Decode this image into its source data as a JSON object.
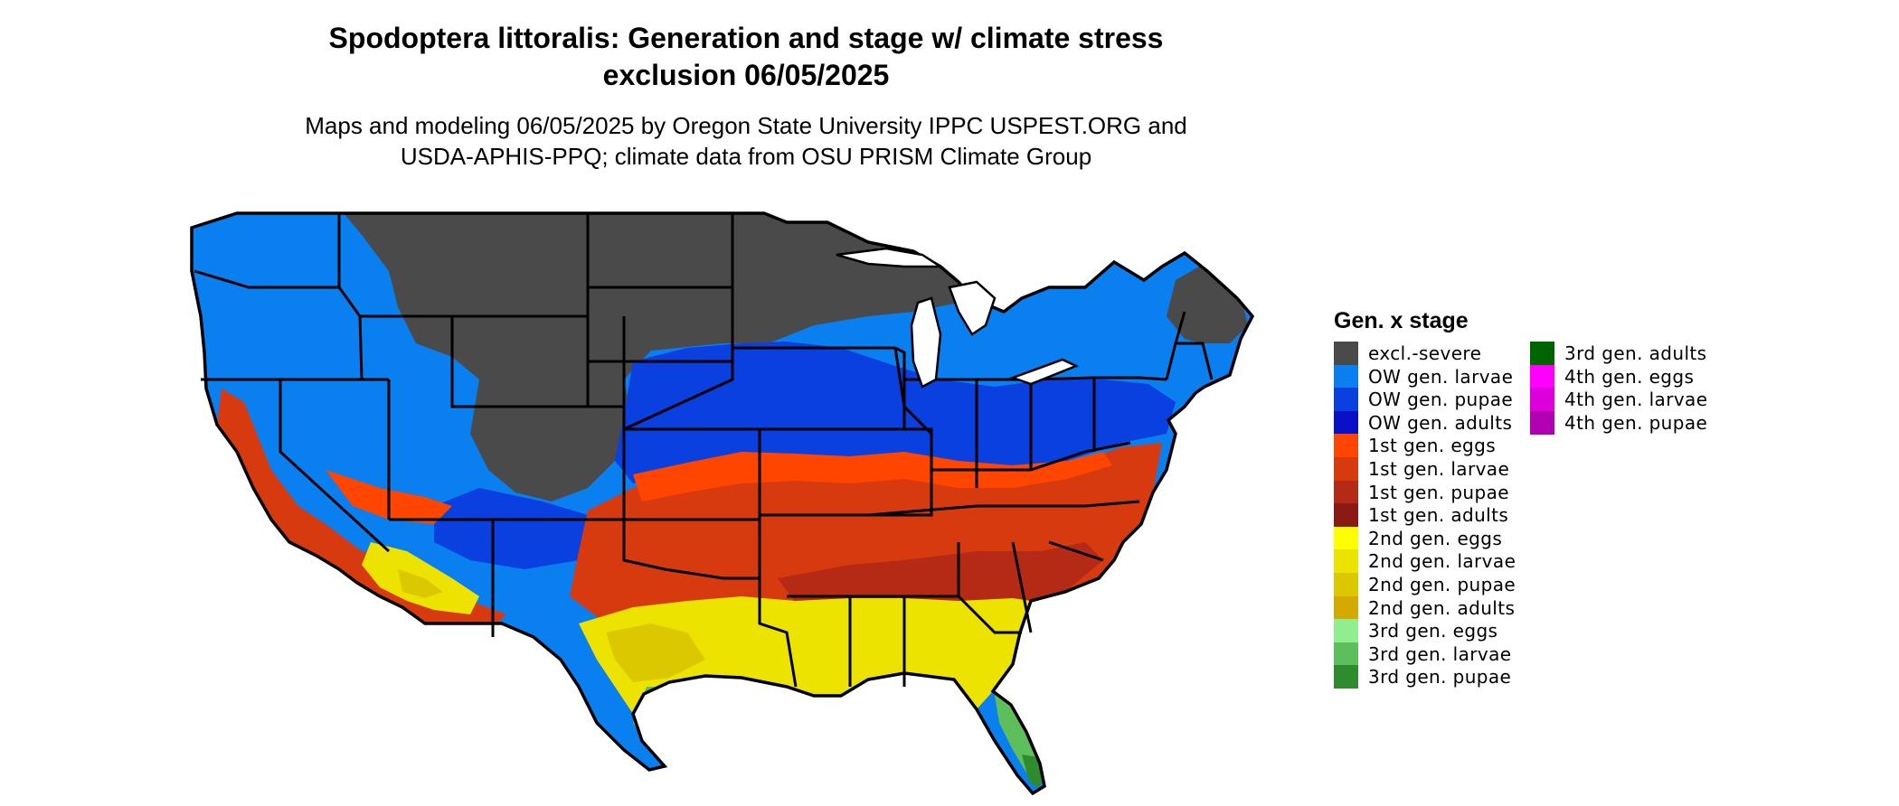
{
  "title_line1": "Spodoptera littoralis: Generation and stage w/ climate stress",
  "title_line2": "exclusion 06/05/2025",
  "subtitle_line1": "Maps and modeling 06/05/2025 by Oregon State University IPPC USPEST.ORG and",
  "subtitle_line2": "USDA-APHIS-PPQ; climate data from OSU PRISM Climate Group",
  "legend": {
    "title": "Gen. x stage",
    "items": [
      {
        "label": "excl.-severe",
        "color": "#4a4a4a"
      },
      {
        "label": "OW gen. larvae",
        "color": "#0a7ff0"
      },
      {
        "label": "OW gen. pupae",
        "color": "#0a3fe0"
      },
      {
        "label": "OW gen. adults",
        "color": "#0a10c8"
      },
      {
        "label": "1st gen. eggs",
        "color": "#ff4500"
      },
      {
        "label": "1st gen. larvae",
        "color": "#d83a10"
      },
      {
        "label": "1st gen. pupae",
        "color": "#b52a14"
      },
      {
        "label": "1st gen. adults",
        "color": "#8b1a14"
      },
      {
        "label": "2nd gen. eggs",
        "color": "#ffff00"
      },
      {
        "label": "2nd gen. larvae",
        "color": "#ece400"
      },
      {
        "label": "2nd gen. pupae",
        "color": "#dcc800"
      },
      {
        "label": "2nd gen. adults",
        "color": "#d4aa00"
      },
      {
        "label": "3rd gen. eggs",
        "color": "#90ee90"
      },
      {
        "label": "3rd gen. larvae",
        "color": "#5cbf5c"
      },
      {
        "label": "3rd gen. pupae",
        "color": "#2e8b2e"
      },
      {
        "label": "3rd gen. adults",
        "color": "#006400"
      },
      {
        "label": "4th gen. eggs",
        "color": "#ff00ff"
      },
      {
        "label": "4th gen. larvae",
        "color": "#dd00dd"
      },
      {
        "label": "4th gen. pupae",
        "color": "#b000b0"
      }
    ]
  }
}
